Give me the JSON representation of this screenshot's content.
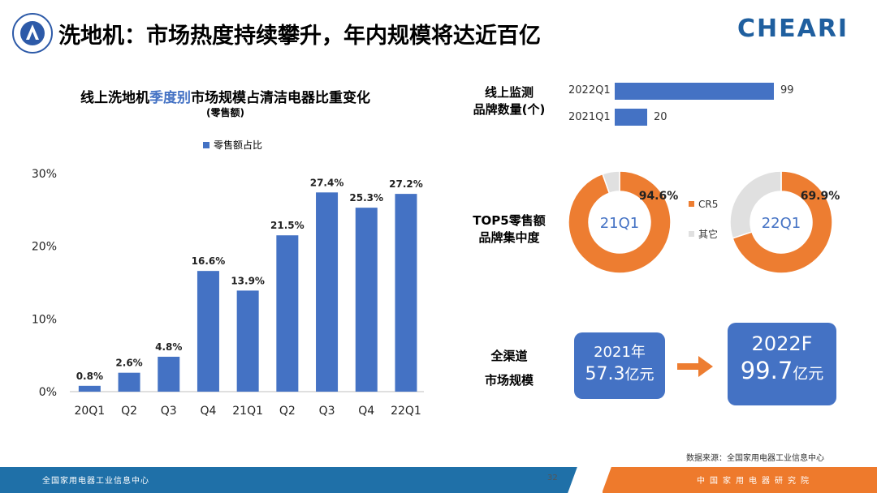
{
  "header": {
    "title": "洗地机：市场热度持续攀升，年内规模将达近百亿",
    "brand": "CHEARI"
  },
  "chart_data": [
    {
      "type": "bar",
      "title": "线上洗地机季度别市场规模占清洁电器比重变化",
      "title_parts": [
        "线上洗地机",
        "季度别",
        "市场规模占清洁电器比重变化"
      ],
      "subtitle": "(零售额)",
      "legend": "零售额占比",
      "categories": [
        "20Q1",
        "Q2",
        "Q3",
        "Q4",
        "21Q1",
        "Q2",
        "Q3",
        "Q4",
        "22Q1"
      ],
      "values": [
        0.8,
        2.6,
        4.8,
        16.6,
        13.9,
        21.5,
        27.4,
        25.3,
        27.2
      ],
      "value_labels": [
        "0.8%",
        "2.6%",
        "4.8%",
        "16.6%",
        "13.9%",
        "21.5%",
        "27.4%",
        "25.3%",
        "27.2%"
      ],
      "y_ticks": [
        "0%",
        "10%",
        "20%",
        "30%"
      ],
      "ylim": [
        0,
        30
      ],
      "color": "#4472c4"
    },
    {
      "type": "bar",
      "title": "线上监测品牌数量(个)",
      "categories": [
        "2022Q1",
        "2021Q1"
      ],
      "values": [
        99,
        20
      ],
      "color": "#4472c4"
    },
    {
      "type": "pie",
      "title": "TOP5零售额品牌集中度",
      "donuts": [
        {
          "label": "21Q1",
          "series": [
            {
              "name": "CR5",
              "value": 94.6
            },
            {
              "name": "其它",
              "value": 5.4
            }
          ],
          "value_label": "94.6%"
        },
        {
          "label": "22Q1",
          "series": [
            {
              "name": "CR5",
              "value": 69.9
            },
            {
              "name": "其它",
              "value": 30.1
            }
          ],
          "value_label": "69.9%"
        }
      ],
      "legend": [
        "CR5",
        "其它"
      ],
      "colors": {
        "CR5": "#ed7d31",
        "其它": "#e0e0e0"
      }
    }
  ],
  "panels": {
    "brand_count_label": [
      "线上监测",
      "品牌数量(个)"
    ],
    "cr5_label": [
      "TOP5零售额",
      "品牌集中度"
    ],
    "scale_label": [
      "全渠道",
      "市场规模"
    ],
    "scale_2021": {
      "year": "2021年",
      "value": "57.3",
      "unit": "亿元"
    },
    "scale_2022": {
      "year": "2022F",
      "value": "99.7",
      "unit": "亿元"
    }
  },
  "footer": {
    "source": "数据来源：全国家用电器工业信息中心",
    "left_text": "全国家用电器工业信息中心",
    "page": "32",
    "right_text": "中国家用电器研究院"
  },
  "colors": {
    "accent_blue": "#4472c4",
    "accent_orange": "#ed7d31",
    "footer_blue": "#1f70a8",
    "footer_orange": "#ee7a2c"
  }
}
